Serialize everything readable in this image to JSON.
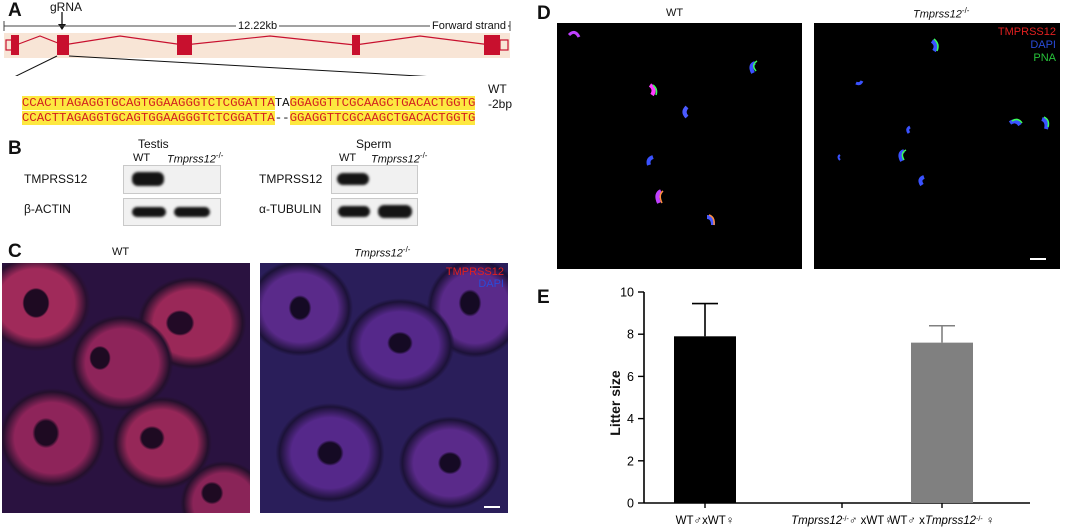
{
  "panels": {
    "A": "A",
    "B": "B",
    "C": "C",
    "D": "D",
    "E": "E"
  },
  "panelA": {
    "grna_label": "gRNA",
    "size_label": "12.22kb",
    "strand_label": "Forward strand",
    "seq_wt_left": "CCACTTAGAGGTGCAGTGGAAGGGTCTCGGATTA",
    "seq_wt_mid": "TA",
    "seq_wt_right": "GGAGGTTCGCAAGCTGACACTGGTG",
    "seq_mut_left": "CCACTTAGAGGTGCAGTGGAAGGGTCTCGGATTA",
    "seq_mut_mid": "--",
    "seq_mut_right": "GGAGGTTCGCAAGCTGACACTGGTG",
    "wt_label": "WT",
    "mut_label": "-2bp"
  },
  "panelB": {
    "testis_title": "Testis",
    "sperm_title": "Sperm",
    "col_wt": "WT",
    "col_ko": "Tmprss12",
    "col_ko_sup": "-/-",
    "row1_label": "TMPRSS12",
    "row2_testis": "β-ACTIN",
    "row2_sperm": "α-TUBULIN"
  },
  "panelC": {
    "wt_title": "WT",
    "ko_title": "Tmprss12",
    "ko_sup": "-/-",
    "legend_red": "TMPRSS12",
    "legend_blue": "DAPI"
  },
  "panelD": {
    "wt_title": "WT",
    "ko_title": "Tmprss12",
    "ko_sup": "-/-",
    "legend_red": "TMPRSS12",
    "legend_blue": "DAPI",
    "legend_green": "PNA"
  },
  "chart_data": {
    "type": "bar",
    "ylabel": "Litter size",
    "ylim": [
      0,
      10
    ],
    "yticks": [
      0,
      2,
      4,
      6,
      8,
      10
    ],
    "categories": [
      {
        "parts": [
          "WT♂xWT♀"
        ]
      },
      {
        "parts": [
          "Tmprss12",
          "-/-",
          "♂ xWT♀"
        ]
      },
      {
        "parts": [
          "WT♂ x",
          "Tmprss12",
          "-/-",
          " ♀"
        ]
      }
    ],
    "values": [
      7.9,
      0,
      7.6
    ],
    "errors": [
      1.55,
      0,
      0.8
    ],
    "colors": [
      "#000000",
      "#000000",
      "#808080"
    ],
    "grid": false
  },
  "colors": {
    "gene_red": "#c8102e",
    "seq_highlight": "#fde840",
    "seq_text": "#d21f1f",
    "blot_band": "#141414",
    "label_red": "#e02020",
    "label_blue": "#2a4bd8",
    "label_green": "#27c23a"
  }
}
